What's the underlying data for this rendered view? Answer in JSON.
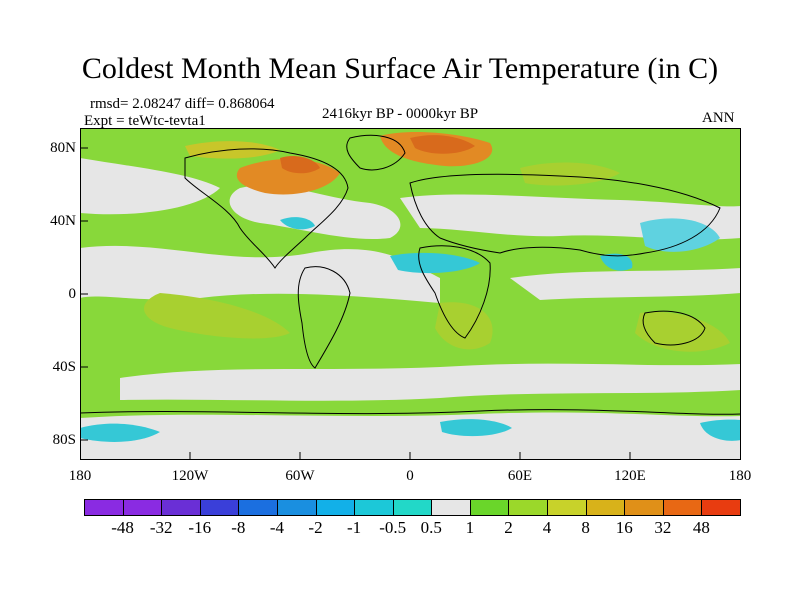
{
  "title": "Coldest Month Mean Surface Air Temperature (in C)",
  "stats": "rmsd= 2.08247 diff= 0.868064",
  "experiment": "Expt = teWtc-tevta1",
  "period": "2416kyr BP - 0000kyr BP",
  "season": "ANN",
  "lat_labels": [
    "80N",
    "40N",
    "0",
    "40S",
    "80S"
  ],
  "lon_labels": [
    "180",
    "120W",
    "60W",
    "0",
    "60E",
    "120E",
    "180"
  ],
  "colorbar": {
    "labels": [
      "-48",
      "-32",
      "-16",
      "-8",
      "-4",
      "-2",
      "-1",
      "-0.5",
      "0.5",
      "1",
      "2",
      "4",
      "8",
      "16",
      "32",
      "48"
    ],
    "colors": [
      "#8a2be2",
      "#6a2fd6",
      "#3a3fd9",
      "#1b6fe0",
      "#1a8fe0",
      "#12b0e8",
      "#1cc8d8",
      "#22d8c8",
      "#e6e6e6",
      "#6ad62a",
      "#9bd82a",
      "#c8d22a",
      "#d8b21a",
      "#e09018",
      "#e86814",
      "#e83c10"
    ]
  },
  "palette": {
    "green": "#88d83a",
    "yellowgreen": "#a8d030",
    "neutral": "#e6e6e6",
    "cyan": "#35c8d6",
    "lightblue": "#5fd2e0",
    "orange": "#e28a24",
    "darkorange": "#d86a1c",
    "yellow": "#c8c62a"
  }
}
